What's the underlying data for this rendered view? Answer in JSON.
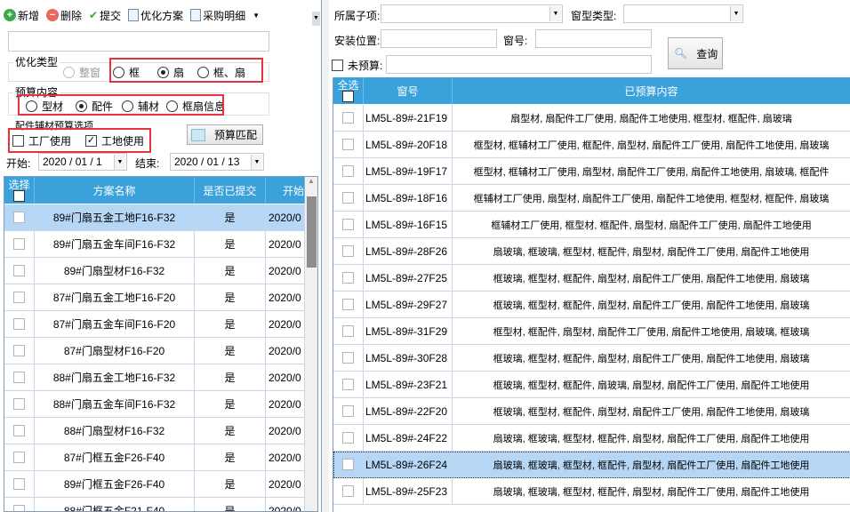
{
  "toolbar": {
    "items": [
      {
        "label": "新增",
        "icon": "plus-circle-icon"
      },
      {
        "label": "删除",
        "icon": "minus-circle-icon"
      },
      {
        "label": "提交",
        "icon": "checkmark-icon"
      },
      {
        "label": "优化方案",
        "icon": "report-icon"
      },
      {
        "label": "采购明细",
        "icon": "report-icon"
      }
    ]
  },
  "filters": {
    "opt_type": {
      "label": "优化类型",
      "options": [
        "整窗",
        "框",
        "扇",
        "框、扇"
      ],
      "selected": "扇",
      "disabled": [
        "整窗"
      ]
    },
    "budget": {
      "label": "预算内容",
      "options": [
        "型材",
        "配件",
        "辅材",
        "框扇信息"
      ],
      "selected": "配件"
    },
    "options": {
      "label": "配件辅材预算选项",
      "factory": {
        "label": "工厂使用",
        "checked": false
      },
      "site": {
        "label": "工地使用",
        "checked": true
      }
    },
    "match_button": "预算匹配",
    "start_label": "开始:",
    "start_value": "2020 / 01 / 1",
    "end_label": "结束:",
    "end_value": "2020 / 01 / 13"
  },
  "left_grid": {
    "headers": [
      "选择",
      "方案名称",
      "是否已提交",
      "开始"
    ],
    "rows": [
      {
        "name": "89#门扇五金工地F16-F32",
        "submitted": "是",
        "start": "2020/0",
        "selected": true
      },
      {
        "name": "89#门扇五金车间F16-F32",
        "submitted": "是",
        "start": "2020/0"
      },
      {
        "name": "89#门扇型材F16-F32",
        "submitted": "是",
        "start": "2020/0"
      },
      {
        "name": "87#门扇五金工地F16-F20",
        "submitted": "是",
        "start": "2020/0"
      },
      {
        "name": "87#门扇五金车间F16-F20",
        "submitted": "是",
        "start": "2020/0"
      },
      {
        "name": "87#门扇型材F16-F20",
        "submitted": "是",
        "start": "2020/0"
      },
      {
        "name": "88#门扇五金工地F16-F32",
        "submitted": "是",
        "start": "2020/0"
      },
      {
        "name": "88#门扇五金车间F16-F32",
        "submitted": "是",
        "start": "2020/0"
      },
      {
        "name": "88#门扇型材F16-F32",
        "submitted": "是",
        "start": "2020/0"
      },
      {
        "name": "87#门框五金F26-F40",
        "submitted": "是",
        "start": "2020/0"
      },
      {
        "name": "89#门框五金F26-F40",
        "submitted": "是",
        "start": "2020/0"
      },
      {
        "name": "88#门框五金F21-F40",
        "submitted": "是",
        "start": "2020/0"
      }
    ]
  },
  "search": {
    "subitem_label": "所属子项:",
    "window_type_label": "窗型类型:",
    "location_label": "安装位置:",
    "window_no_label": "窗号:",
    "unbudgeted_label": "未预算:",
    "query_button": "查询"
  },
  "right_grid": {
    "headers": [
      "全选",
      "窗号",
      "已预算内容"
    ],
    "rows": [
      {
        "no": "LM5L-89#-21F19",
        "content": "扇型材, 扇配件工厂使用, 扇配件工地使用, 框型材, 框配件, 扇玻璃"
      },
      {
        "no": "LM5L-89#-20F18",
        "content": "框型材, 框辅材工厂使用, 框配件, 扇型材, 扇配件工厂使用, 扇配件工地使用, 扇玻璃"
      },
      {
        "no": "LM5L-89#-19F17",
        "content": "框型材, 框辅材工厂使用, 扇型材, 扇配件工厂使用, 扇配件工地使用, 扇玻璃, 框配件"
      },
      {
        "no": "LM5L-89#-18F16",
        "content": "框辅材工厂使用, 扇型材, 扇配件工厂使用, 扇配件工地使用, 框型材, 框配件, 扇玻璃"
      },
      {
        "no": "LM5L-89#-16F15",
        "content": "框辅材工厂使用, 框型材, 框配件, 扇型材, 扇配件工厂使用, 扇配件工地使用"
      },
      {
        "no": "LM5L-89#-28F26",
        "content": "扇玻璃, 框玻璃, 框型材, 框配件, 扇型材, 扇配件工厂使用, 扇配件工地使用"
      },
      {
        "no": "LM5L-89#-27F25",
        "content": "框玻璃, 框型材, 框配件, 扇型材, 扇配件工厂使用, 扇配件工地使用, 扇玻璃"
      },
      {
        "no": "LM5L-89#-29F27",
        "content": "框玻璃, 框型材, 框配件, 扇型材, 扇配件工厂使用, 扇配件工地使用, 扇玻璃"
      },
      {
        "no": "LM5L-89#-31F29",
        "content": "框型材, 框配件, 扇型材, 扇配件工厂使用, 扇配件工地使用, 扇玻璃, 框玻璃"
      },
      {
        "no": "LM5L-89#-30F28",
        "content": "框玻璃, 框型材, 框配件, 扇型材, 扇配件工厂使用, 扇配件工地使用, 扇玻璃"
      },
      {
        "no": "LM5L-89#-23F21",
        "content": "框玻璃, 框型材, 框配件, 扇玻璃, 扇型材, 扇配件工厂使用, 扇配件工地使用"
      },
      {
        "no": "LM5L-89#-22F20",
        "content": "框玻璃, 框型材, 框配件, 扇型材, 扇配件工厂使用, 扇配件工地使用, 扇玻璃"
      },
      {
        "no": "LM5L-89#-24F22",
        "content": "扇玻璃, 框玻璃, 框型材, 框配件, 扇型材, 扇配件工厂使用, 扇配件工地使用"
      },
      {
        "no": "LM5L-89#-26F24",
        "content": "扇玻璃, 框玻璃, 框型材, 框配件, 扇型材, 扇配件工厂使用, 扇配件工地使用",
        "selected": true
      },
      {
        "no": "LM5L-89#-25F23",
        "content": "扇玻璃, 框玻璃, 框型材, 框配件, 扇型材, 扇配件工厂使用, 扇配件工地使用"
      }
    ]
  },
  "colors": {
    "header_blue": "#3aa1da",
    "selected_row": "#b6d6f5",
    "highlight_red": "#e8323c"
  }
}
